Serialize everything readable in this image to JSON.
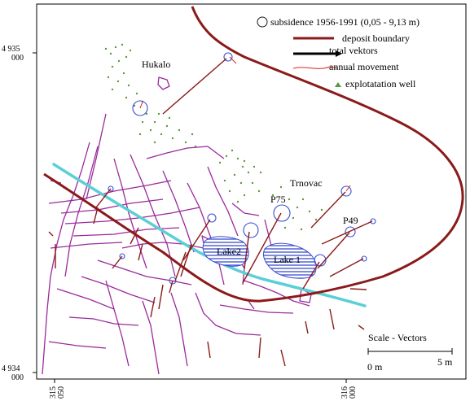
{
  "legend": {
    "subsidence": "subsidence 1956-1991 (0,05 - 9,13 m)",
    "deposit_boundary": "deposit boundary",
    "total_vectors": "total vektors",
    "annual_movement": "annual movement",
    "wells": "explotatation well"
  },
  "places": {
    "hukalo": "Hukalo",
    "trnovac": "Trnovac",
    "p75": "P75",
    "p49": "P49",
    "lake2": "Lake2",
    "lake1": "Lake 1"
  },
  "axes": {
    "y_top_main": "4 935",
    "y_top_sub": "000",
    "y_bottom_main": "4 934",
    "y_bottom_sub": "000",
    "x_left_main": "315",
    "x_left_sub": "050",
    "x_right_main": "316",
    "x_right_sub": "000"
  },
  "scale": {
    "title": "Scale - Vectors",
    "zero": "0 m",
    "five": "5 m"
  },
  "colors": {
    "deposit_boundary": "#8b1a1a",
    "river": "#5ccfd6",
    "streets": "#9b2a9c",
    "subsidence_circle": "#3a4fd0",
    "annual_movement": "#e02020",
    "well": "#5a9a3a",
    "lake_fill": "#3a4fd0"
  }
}
